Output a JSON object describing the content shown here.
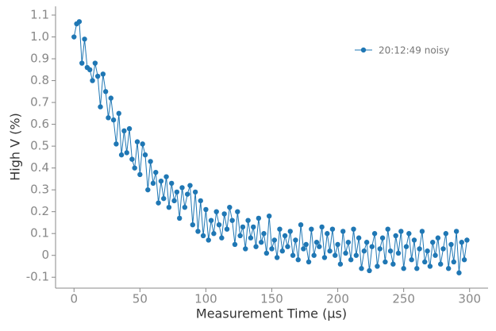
{
  "chart_data": {
    "type": "line",
    "xlabel": "Measurement Time (µs)",
    "ylabel": "High V (%)",
    "x": [
      0,
      2,
      4,
      6,
      8,
      10,
      12,
      14,
      16,
      18,
      20,
      22,
      24,
      26,
      28,
      30,
      32,
      34,
      36,
      38,
      40,
      42,
      44,
      46,
      48,
      50,
      52,
      54,
      56,
      58,
      60,
      62,
      64,
      66,
      68,
      70,
      72,
      74,
      76,
      78,
      80,
      82,
      84,
      86,
      88,
      90,
      92,
      94,
      96,
      98,
      100,
      102,
      104,
      106,
      108,
      110,
      112,
      114,
      116,
      118,
      120,
      122,
      124,
      126,
      128,
      130,
      132,
      134,
      136,
      138,
      140,
      142,
      144,
      146,
      148,
      150,
      152,
      154,
      156,
      158,
      160,
      162,
      164,
      166,
      168,
      170,
      172,
      174,
      176,
      178,
      180,
      182,
      184,
      186,
      188,
      190,
      192,
      194,
      196,
      198,
      200,
      202,
      204,
      206,
      208,
      210,
      212,
      214,
      216,
      218,
      220,
      222,
      224,
      226,
      228,
      230,
      232,
      234,
      236,
      238,
      240,
      242,
      244,
      246,
      248,
      250,
      252,
      254,
      256,
      258,
      260,
      262,
      264,
      266,
      268,
      270,
      272,
      274,
      276,
      278,
      280,
      282,
      284,
      286,
      288,
      290,
      292,
      294,
      296,
      298
    ],
    "series": [
      {
        "name": "20:12:49 noisy",
        "color": "#1f77b4",
        "values": [
          1.0,
          1.06,
          1.07,
          0.88,
          0.99,
          0.86,
          0.85,
          0.8,
          0.88,
          0.82,
          0.68,
          0.83,
          0.75,
          0.63,
          0.72,
          0.62,
          0.51,
          0.65,
          0.46,
          0.57,
          0.47,
          0.58,
          0.44,
          0.4,
          0.52,
          0.37,
          0.51,
          0.46,
          0.3,
          0.43,
          0.33,
          0.38,
          0.24,
          0.34,
          0.26,
          0.36,
          0.22,
          0.33,
          0.25,
          0.29,
          0.17,
          0.31,
          0.22,
          0.28,
          0.32,
          0.14,
          0.29,
          0.11,
          0.25,
          0.09,
          0.21,
          0.07,
          0.16,
          0.1,
          0.2,
          0.14,
          0.08,
          0.19,
          0.12,
          0.22,
          0.16,
          0.05,
          0.2,
          0.09,
          0.13,
          0.03,
          0.16,
          0.08,
          0.13,
          0.04,
          0.17,
          0.06,
          0.1,
          0.01,
          0.18,
          0.03,
          0.07,
          -0.01,
          0.12,
          0.02,
          0.09,
          0.04,
          0.11,
          0.0,
          0.07,
          -0.02,
          0.14,
          0.03,
          0.05,
          -0.03,
          0.12,
          0.0,
          0.06,
          0.04,
          0.13,
          -0.01,
          0.1,
          0.02,
          0.12,
          0.0,
          0.05,
          -0.04,
          0.11,
          0.01,
          0.06,
          -0.02,
          0.12,
          0.0,
          0.08,
          -0.06,
          0.02,
          0.06,
          -0.07,
          0.04,
          0.1,
          -0.05,
          0.03,
          0.08,
          -0.03,
          0.12,
          0.02,
          -0.04,
          0.09,
          0.01,
          0.11,
          -0.06,
          0.04,
          0.1,
          -0.02,
          0.07,
          -0.06,
          0.03,
          0.11,
          -0.03,
          0.02,
          -0.05,
          0.06,
          0.0,
          0.08,
          -0.04,
          0.03,
          0.1,
          -0.06,
          0.05,
          -0.03,
          0.11,
          -0.08,
          0.06,
          -0.02,
          0.07
        ]
      }
    ],
    "xlim": [
      -14,
      314
    ],
    "ylim": [
      -0.15,
      1.14
    ],
    "xticks": [
      0,
      50,
      100,
      150,
      200,
      250,
      300
    ],
    "yticks": [
      -0.1,
      0,
      0.1,
      0.2,
      0.3,
      0.4,
      0.5,
      0.6,
      0.7,
      0.8,
      0.9,
      {
        "value": 1.0,
        "label": "1.0"
      },
      1.1
    ],
    "legend": "upper right"
  }
}
